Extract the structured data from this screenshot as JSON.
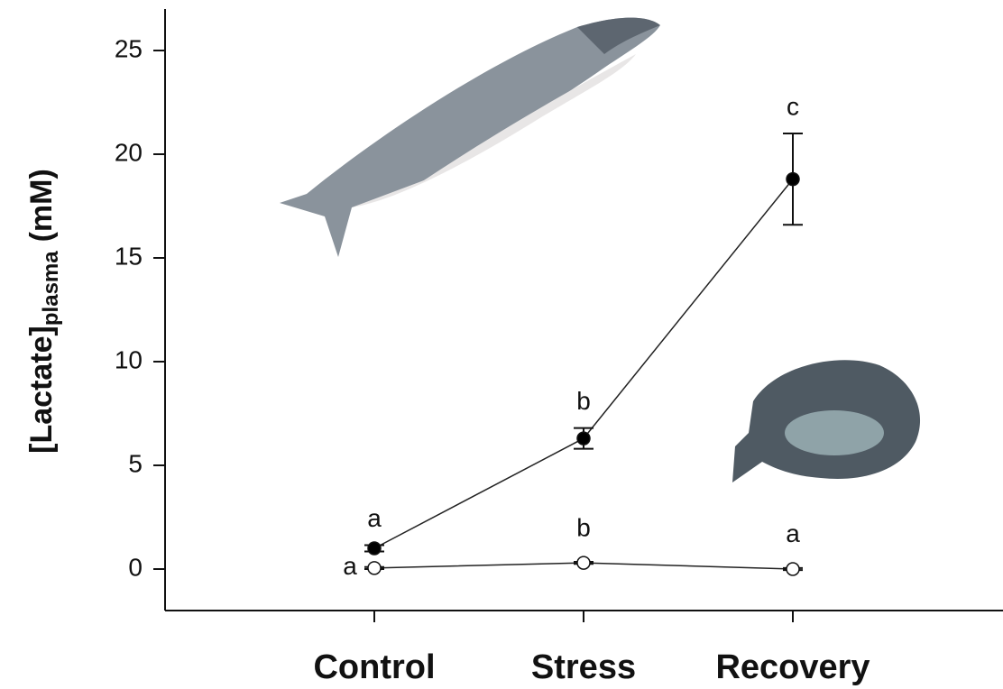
{
  "chart_data": {
    "type": "line",
    "ylabel": "[Lactate]",
    "ylabel_sub": "plasma",
    "ylabel_unit": "(mM)",
    "categories": [
      "Control",
      "Stress",
      "Recovery"
    ],
    "series": [
      {
        "color": "#000000",
        "values": [
          1.0,
          6.3,
          18.8
        ],
        "errors": [
          0.15,
          0.5,
          2.2
        ],
        "letters": [
          "a",
          "b",
          "c"
        ]
      },
      {
        "color": "#ffffff",
        "values": [
          0.05,
          0.3,
          0.0
        ],
        "errors": [
          0.05,
          0.05,
          0.05
        ],
        "letters": [
          "a",
          "b",
          "a"
        ]
      }
    ],
    "ylim": [
      -2,
      27
    ],
    "yticks": [
      0,
      5,
      10,
      15,
      20,
      25
    ],
    "grid": false
  }
}
